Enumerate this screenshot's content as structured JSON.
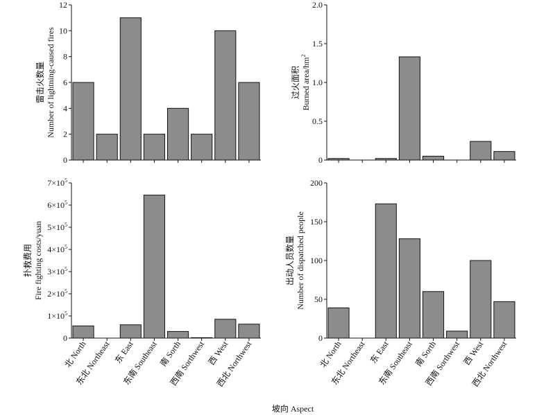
{
  "figure": {
    "xlabel": "坡向 Aspect"
  },
  "chart_data": [
    {
      "type": "bar",
      "title": "",
      "ylabel_cn": "雷击火数量",
      "ylabel_en": "Number of lightning-caused fires",
      "ylim": [
        0,
        12
      ],
      "yticks": [
        {
          "value": 0,
          "label": "0"
        },
        {
          "value": 2,
          "label": "2"
        },
        {
          "value": 4,
          "label": "4"
        },
        {
          "value": 6,
          "label": "6"
        },
        {
          "value": 8,
          "label": "8"
        },
        {
          "value": 10,
          "label": "10"
        },
        {
          "value": 12,
          "label": "12"
        }
      ],
      "categories": [
        "北 North",
        "东北 Northeast",
        "东 East",
        "东南 Southeast",
        "南 Sorth",
        "西南 Sorthwest",
        "西 West",
        "西北 Northwest"
      ],
      "values": [
        6,
        2,
        11,
        2,
        4,
        2,
        10,
        6
      ],
      "show_category_labels": false
    },
    {
      "type": "bar",
      "title": "",
      "ylabel_cn": "过火面积",
      "ylabel_en": "Burned area/hm",
      "ylabel_en_sup": "2",
      "ylim": [
        0,
        2.0
      ],
      "yticks": [
        {
          "value": 0,
          "label": "0"
        },
        {
          "value": 0.5,
          "label": "0.5"
        },
        {
          "value": 1.0,
          "label": "1.0"
        },
        {
          "value": 1.5,
          "label": "1.5"
        },
        {
          "value": 2.0,
          "label": "2.0"
        }
      ],
      "categories": [
        "北 North",
        "东北 Northeast",
        "东 East",
        "东南 Southeast",
        "南 Sorth",
        "西南 Sorthwest",
        "西 West",
        "西北 Northwest"
      ],
      "values": [
        0.02,
        0,
        0.02,
        1.33,
        0.05,
        0,
        0.24,
        0.11
      ],
      "show_category_labels": false
    },
    {
      "type": "bar",
      "title": "",
      "ylabel_cn": "扑救费用",
      "ylabel_en": "Fire fighting costs/yuan",
      "ylim": [
        0,
        700000
      ],
      "yticks": [
        {
          "value": 0,
          "label": "0",
          "sup": ""
        },
        {
          "value": 100000,
          "label": "1×10",
          "sup": "5"
        },
        {
          "value": 200000,
          "label": "2×10",
          "sup": "5"
        },
        {
          "value": 300000,
          "label": "3×10",
          "sup": "5"
        },
        {
          "value": 400000,
          "label": "4×10",
          "sup": "5"
        },
        {
          "value": 500000,
          "label": "5×10",
          "sup": "5"
        },
        {
          "value": 600000,
          "label": "6×10",
          "sup": "5"
        },
        {
          "value": 700000,
          "label": "7×10",
          "sup": "5"
        }
      ],
      "categories": [
        "北 North",
        "东北 Northeast",
        "东 East",
        "东南 Southeast",
        "南 Sorth",
        "西南 Sorthwest",
        "西 West",
        "西北 Northwest"
      ],
      "values": [
        55000,
        0,
        60000,
        645000,
        30000,
        2000,
        85000,
        63000
      ],
      "show_category_labels": true
    },
    {
      "type": "bar",
      "title": "",
      "ylabel_cn": "出动人员数量",
      "ylabel_en": "Number of dispatched people",
      "ylim": [
        0,
        200
      ],
      "yticks": [
        {
          "value": 0,
          "label": "0"
        },
        {
          "value": 50,
          "label": "50"
        },
        {
          "value": 100,
          "label": "100"
        },
        {
          "value": 150,
          "label": "150"
        },
        {
          "value": 200,
          "label": "200"
        }
      ],
      "categories": [
        "北 North",
        "东北 Northeast",
        "东 East",
        "东南 Southeast",
        "南 Sorth",
        "西南 Sorthwest",
        "西 West",
        "西北 Northwest"
      ],
      "values": [
        39,
        0,
        173,
        128,
        60,
        9,
        100,
        47
      ],
      "show_category_labels": true
    }
  ],
  "colors": {
    "bar_fill": "#8c8c8c",
    "bar_stroke": "#111111",
    "axis": "#111111"
  }
}
